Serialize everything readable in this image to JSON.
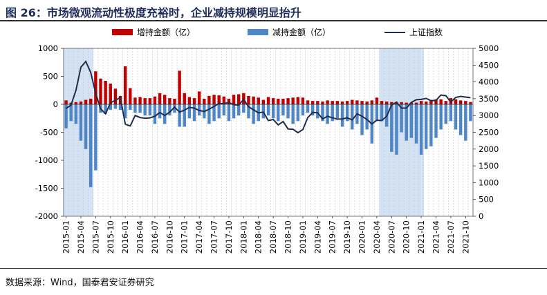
{
  "title": "图 26：市场微观流动性极度充裕时，企业减持规模明显抬升",
  "source": "数据来源：Wind，国泰君安证券研究",
  "chart_data": {
    "type": "bar",
    "legend": [
      {
        "key": "increase",
        "label": "增持金额（亿）",
        "color": "#c00000"
      },
      {
        "key": "decrease",
        "label": "减持金额（亿）",
        "color": "#4f86c6"
      },
      {
        "key": "index",
        "label": "上证指数",
        "color": "#1f2d4a"
      }
    ],
    "legend_position": "top",
    "y_left": {
      "min": -2000,
      "max": 1000,
      "ticks": [
        1000,
        500,
        0,
        -500,
        -1000,
        -1500,
        -2000
      ]
    },
    "y_right": {
      "min": 0,
      "max": 5000,
      "ticks": [
        5000,
        4500,
        4000,
        3500,
        3000,
        2500,
        2000,
        1500,
        1000,
        500,
        0
      ]
    },
    "x_tick_labels": [
      "2015-01",
      "2015-04",
      "2015-07",
      "2015-10",
      "2016-01",
      "2016-04",
      "2016-07",
      "2016-10",
      "2017-01",
      "2017-04",
      "2017-07",
      "2017-10",
      "2018-01",
      "2018-04",
      "2018-07",
      "2018-10",
      "2019-01",
      "2019-04",
      "2019-07",
      "2019-10",
      "2020-01",
      "2020-04",
      "2020-07",
      "2020-10",
      "2021-01",
      "2021-04",
      "2021-07",
      "2021-10"
    ],
    "shaded_periods": [
      {
        "start": "2015-01",
        "end": "2015-06"
      },
      {
        "start": "2020-05",
        "end": "2021-01"
      }
    ],
    "categories": [
      "2015-01",
      "2015-02",
      "2015-03",
      "2015-04",
      "2015-05",
      "2015-06",
      "2015-07",
      "2015-08",
      "2015-09",
      "2015-10",
      "2015-11",
      "2015-12",
      "2016-01",
      "2016-02",
      "2016-03",
      "2016-04",
      "2016-05",
      "2016-06",
      "2016-07",
      "2016-08",
      "2016-09",
      "2016-10",
      "2016-11",
      "2016-12",
      "2017-01",
      "2017-02",
      "2017-03",
      "2017-04",
      "2017-05",
      "2017-06",
      "2017-07",
      "2017-08",
      "2017-09",
      "2017-10",
      "2017-11",
      "2017-12",
      "2018-01",
      "2018-02",
      "2018-03",
      "2018-04",
      "2018-05",
      "2018-06",
      "2018-07",
      "2018-08",
      "2018-09",
      "2018-10",
      "2018-11",
      "2018-12",
      "2019-01",
      "2019-02",
      "2019-03",
      "2019-04",
      "2019-05",
      "2019-06",
      "2019-07",
      "2019-08",
      "2019-09",
      "2019-10",
      "2019-11",
      "2019-12",
      "2020-01",
      "2020-02",
      "2020-03",
      "2020-04",
      "2020-05",
      "2020-06",
      "2020-07",
      "2020-08",
      "2020-09",
      "2020-10",
      "2020-11",
      "2020-12",
      "2021-01",
      "2021-02",
      "2021-03",
      "2021-04",
      "2021-05",
      "2021-06",
      "2021-07",
      "2021-08",
      "2021-09",
      "2021-10",
      "2021-11"
    ],
    "series": [
      {
        "name": "增持金额（亿）",
        "axis": "left",
        "type": "bar",
        "values": [
          70,
          30,
          40,
          50,
          80,
          100,
          590,
          460,
          420,
          370,
          280,
          150,
          680,
          290,
          120,
          130,
          110,
          110,
          140,
          200,
          170,
          110,
          100,
          600,
          200,
          130,
          110,
          230,
          100,
          150,
          170,
          160,
          140,
          100,
          170,
          180,
          200,
          150,
          140,
          120,
          80,
          130,
          110,
          100,
          100,
          110,
          120,
          130,
          120,
          70,
          60,
          60,
          50,
          70,
          60,
          60,
          50,
          60,
          80,
          70,
          60,
          50,
          70,
          120,
          60,
          50,
          40,
          40,
          40,
          30,
          30,
          30,
          60,
          50,
          80,
          90,
          90,
          60,
          110,
          90,
          70,
          60,
          40
        ]
      },
      {
        "name": "减持金额（亿）",
        "axis": "left",
        "type": "bar",
        "values": [
          -430,
          -300,
          -350,
          -650,
          -800,
          -1480,
          -1180,
          -150,
          -170,
          -100,
          -80,
          -100,
          -250,
          -100,
          -150,
          -150,
          -200,
          -200,
          -350,
          -250,
          -350,
          -200,
          -150,
          -400,
          -400,
          -250,
          -300,
          -200,
          -250,
          -350,
          -300,
          -250,
          -200,
          -300,
          -250,
          -200,
          -150,
          -250,
          -350,
          -300,
          -250,
          -200,
          -250,
          -300,
          -200,
          -250,
          -350,
          -300,
          -200,
          -150,
          -200,
          -250,
          -300,
          -350,
          -300,
          -250,
          -400,
          -300,
          -450,
          -350,
          -550,
          -450,
          -700,
          -300,
          -300,
          -400,
          -850,
          -900,
          -500,
          -650,
          -600,
          -700,
          -900,
          -800,
          -750,
          -600,
          -450,
          -350,
          -300,
          -450,
          -550,
          -650,
          -300
        ]
      },
      {
        "name": "上证指数",
        "axis": "right",
        "type": "line",
        "values": [
          3210,
          3310,
          3750,
          4440,
          4610,
          4280,
          3660,
          3200,
          3050,
          3380,
          3450,
          3540,
          2740,
          2690,
          3000,
          2940,
          2920,
          2930,
          2980,
          3090,
          3000,
          3100,
          3250,
          3100,
          3160,
          3240,
          3220,
          3150,
          3120,
          3190,
          3270,
          3360,
          3350,
          3390,
          3320,
          3310,
          3480,
          3260,
          3170,
          3080,
          3100,
          2850,
          2880,
          2720,
          2820,
          2600,
          2590,
          2490,
          2580,
          2940,
          3090,
          3080,
          2900,
          2980,
          2930,
          2890,
          2900,
          2930,
          2870,
          3050,
          2980,
          2880,
          2750,
          2860,
          2850,
          2980,
          3310,
          3400,
          3220,
          3220,
          3390,
          3470,
          3480,
          3510,
          3440,
          3450,
          3610,
          3590,
          3400,
          3540,
          3570,
          3550,
          3530
        ]
      }
    ]
  }
}
